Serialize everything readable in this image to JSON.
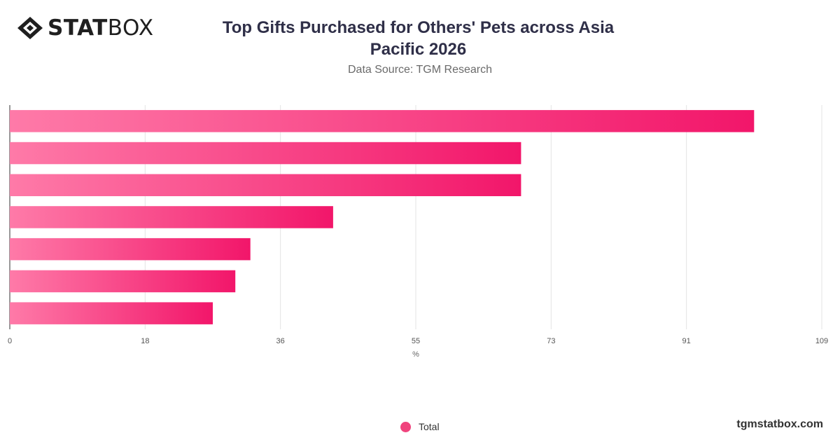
{
  "logo": {
    "icon": "diamond-logo-icon",
    "text_bold": "STAT",
    "text_light": "BOX"
  },
  "header": {
    "title_line1": "Top Gifts Purchased for Others' Pets across Asia",
    "title_line2": "Pacific 2026",
    "subtitle": "Data Source: TGM Research"
  },
  "chart_data": {
    "type": "bar",
    "orientation": "horizontal",
    "categories": [
      "",
      "",
      "",
      "",
      "",
      "",
      ""
    ],
    "series": [
      {
        "name": "Total",
        "values": [
          99,
          68,
          68,
          43,
          32,
          30,
          27
        ],
        "color_start": "#fe7aa8",
        "color_end": "#f2166a"
      }
    ],
    "xlabel": "%",
    "ylabel": "",
    "xlim": [
      0,
      108
    ],
    "xticks": [
      "0",
      "18",
      "36",
      "55",
      "73",
      "91",
      "109"
    ],
    "grid": true,
    "legend_position": "bottom-center"
  },
  "legend": {
    "label": "Total",
    "color": "#f0437d"
  },
  "footer": {
    "url": "tgmstatbox.com"
  }
}
